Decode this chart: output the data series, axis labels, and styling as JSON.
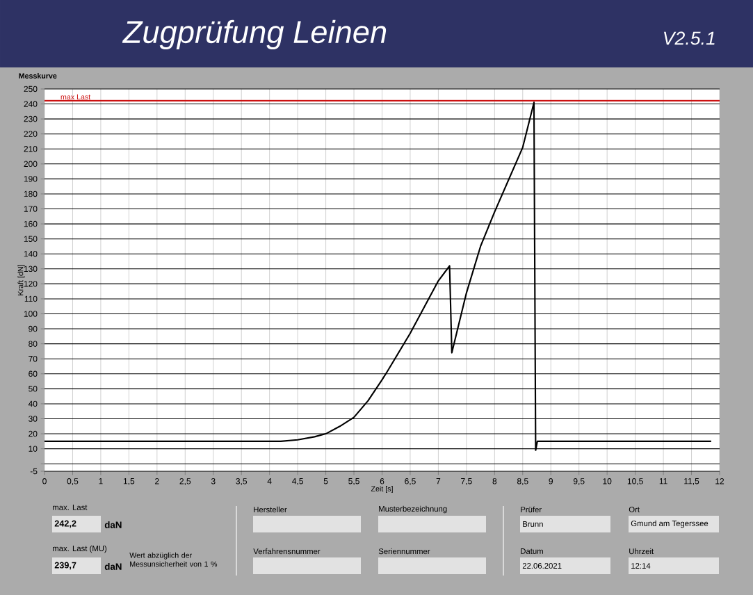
{
  "chart_data": {
    "type": "line",
    "title": "Zugprüfung Leinen",
    "subtitle": "Messkurve",
    "xlabel": "Zeit [s]",
    "ylabel": "Kraft [dN]",
    "x": [
      0,
      4.2,
      4.5,
      4.8,
      5,
      5.25,
      5.5,
      5.75,
      6,
      6.1,
      6.5,
      7,
      7.2,
      7.24,
      7.5,
      7.75,
      8,
      8.5,
      8.7,
      8.73,
      8.76,
      11.85
    ],
    "series": [
      {
        "color": "#000000",
        "values": [
          15,
          15,
          16,
          18,
          20,
          25,
          31,
          42,
          56,
          62,
          87,
          122,
          132,
          74,
          114,
          145,
          168,
          211,
          241,
          9,
          15,
          15
        ]
      }
    ],
    "xlim": [
      0,
      12
    ],
    "ylim": [
      -5,
      250
    ],
    "xticks": [
      0,
      {
        "value": 0.5,
        "label": "0,5"
      },
      1,
      {
        "value": 1.5,
        "label": "1,5"
      },
      2,
      {
        "value": 2.5,
        "label": "2,5"
      },
      3,
      {
        "value": 3.5,
        "label": "3,5"
      },
      4,
      {
        "value": 4.5,
        "label": "4,5"
      },
      5,
      {
        "value": 5.5,
        "label": "5,5"
      },
      6,
      {
        "value": 6.5,
        "label": "6,5"
      },
      7,
      {
        "value": 7.5,
        "label": "7,5"
      },
      8,
      {
        "value": 8.5,
        "label": "8,5"
      },
      9,
      {
        "value": 9.5,
        "label": "9,5"
      },
      10,
      {
        "value": 10.5,
        "label": "10,5"
      },
      11,
      {
        "value": 11.5,
        "label": "11,5"
      },
      12
    ],
    "yticks": [
      -5,
      {
        "value": 0,
        "label": null
      },
      10,
      20,
      30,
      40,
      50,
      60,
      70,
      80,
      90,
      100,
      110,
      120,
      130,
      140,
      150,
      160,
      170,
      180,
      190,
      200,
      210,
      220,
      230,
      240,
      250
    ],
    "ref_lines": [
      {
        "axis": "y",
        "value": 242.2,
        "label": "max Last",
        "color": "#cc1111"
      }
    ],
    "grid": true,
    "marker": "none",
    "line_style": "solid",
    "annotations": [
      "V2.5.1",
      "max. Last",
      "242,2",
      "daN",
      "max. Last (MU)",
      "239,7",
      "daN",
      "Wert abzüglich der Messunsicherheit von 1 %",
      "Hersteller",
      "Verfahrensnummer",
      "Musterbezeichnung",
      "Seriennummer",
      "Prüfer",
      "Brunn",
      "Datum",
      "22.06.2021",
      "Ort",
      "Gmund am Tegerssee",
      "Uhrzeit",
      "12:14"
    ]
  }
}
